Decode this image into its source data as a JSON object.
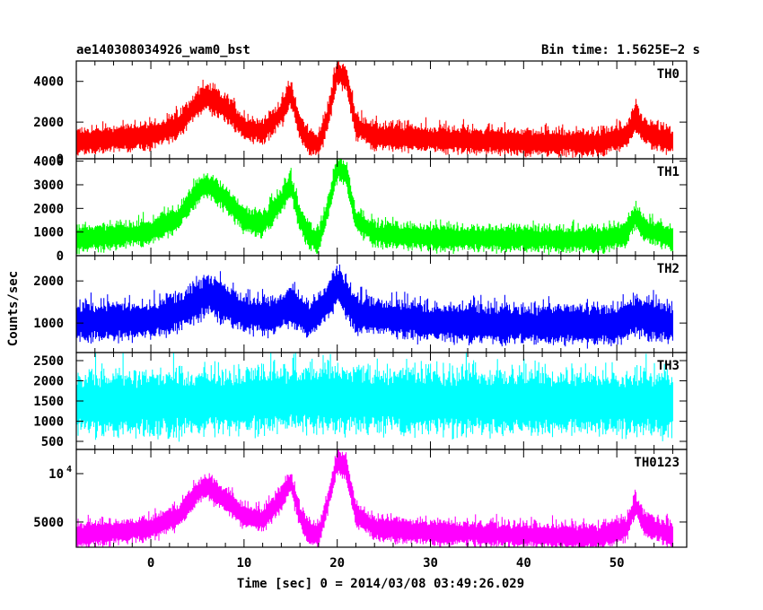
{
  "header": {
    "title": "ae140308034926_wam0_bst",
    "bin_time": "Bin time: 1.5625E−2 s"
  },
  "axis": {
    "ylabel": "Counts/sec",
    "xlabel": "Time [sec] 0 = 2014/03/08 03:49:26.029"
  },
  "chart_data": {
    "type": "line",
    "title": "ae140308034926_wam0_bst",
    "xlabel": "Time [sec] 0 = 2014/03/08 03:49:26.029",
    "ylabel": "Counts/sec",
    "xlim": [
      -8,
      57.5
    ],
    "xticks": [
      0,
      10,
      20,
      30,
      40,
      50
    ],
    "xtick_labels": [
      "0",
      "10",
      "20",
      "30",
      "40",
      "50"
    ],
    "x_start": -8,
    "x_end": 56,
    "panels": [
      {
        "name": "TH0",
        "color": "#ff0000",
        "ylim": [
          200,
          5000
        ],
        "yticks": [
          0,
          2000,
          4000
        ],
        "ytick_labels": [
          "0",
          "2000",
          "4000"
        ],
        "envelope": [
          [
            -8,
            1000
          ],
          [
            -4,
            1150
          ],
          [
            0,
            1300
          ],
          [
            3,
            1800
          ],
          [
            5,
            2900
          ],
          [
            6,
            3200
          ],
          [
            8,
            2700
          ],
          [
            10,
            1700
          ],
          [
            12,
            1500
          ],
          [
            14,
            2400
          ],
          [
            15,
            3400
          ],
          [
            16,
            1700
          ],
          [
            17,
            1000
          ],
          [
            18,
            900
          ],
          [
            19,
            2200
          ],
          [
            20,
            4400
          ],
          [
            21,
            4100
          ],
          [
            22,
            1800
          ],
          [
            24,
            1300
          ],
          [
            30,
            1150
          ],
          [
            40,
            1000
          ],
          [
            48,
            950
          ],
          [
            51,
            1300
          ],
          [
            52,
            2200
          ],
          [
            53,
            1500
          ],
          [
            56,
            1000
          ]
        ],
        "noise": 1000
      },
      {
        "name": "TH1",
        "color": "#00ff00",
        "ylim": [
          0,
          4100
        ],
        "yticks": [
          0,
          1000,
          2000,
          3000,
          4000
        ],
        "ytick_labels": [
          "0",
          "1000",
          "2000",
          "3000",
          "4000"
        ],
        "envelope": [
          [
            -8,
            700
          ],
          [
            -4,
            800
          ],
          [
            0,
            1000
          ],
          [
            3,
            1600
          ],
          [
            5,
            2700
          ],
          [
            6,
            3000
          ],
          [
            8,
            2400
          ],
          [
            10,
            1500
          ],
          [
            12,
            1300
          ],
          [
            14,
            2300
          ],
          [
            15,
            3000
          ],
          [
            16,
            1500
          ],
          [
            17,
            800
          ],
          [
            18,
            600
          ],
          [
            19,
            2000
          ],
          [
            20,
            3700
          ],
          [
            21,
            3400
          ],
          [
            22,
            1500
          ],
          [
            24,
            900
          ],
          [
            30,
            750
          ],
          [
            40,
            700
          ],
          [
            48,
            650
          ],
          [
            51,
            900
          ],
          [
            52,
            1700
          ],
          [
            53,
            1100
          ],
          [
            56,
            700
          ]
        ],
        "noise": 850
      },
      {
        "name": "TH2",
        "color": "#0000ff",
        "ylim": [
          300,
          2600
        ],
        "yticks": [
          1000,
          2000
        ],
        "ytick_labels": [
          "1000",
          "2000"
        ],
        "envelope": [
          [
            -8,
            1000
          ],
          [
            0,
            1050
          ],
          [
            3,
            1250
          ],
          [
            5,
            1500
          ],
          [
            6,
            1650
          ],
          [
            8,
            1450
          ],
          [
            10,
            1200
          ],
          [
            13,
            1150
          ],
          [
            15,
            1400
          ],
          [
            17,
            1050
          ],
          [
            19,
            1500
          ],
          [
            20,
            1900
          ],
          [
            21,
            1600
          ],
          [
            22,
            1200
          ],
          [
            30,
            1000
          ],
          [
            40,
            950
          ],
          [
            50,
            950
          ],
          [
            52,
            1150
          ],
          [
            56,
            950
          ]
        ],
        "noise": 700
      },
      {
        "name": "TH3",
        "color": "#00ffff",
        "ylim": [
          300,
          2700
        ],
        "yticks": [
          500,
          1000,
          1500,
          2000,
          2500
        ],
        "ytick_labels": [
          "500",
          "1000",
          "1500",
          "2000",
          "2500"
        ],
        "envelope": [
          [
            -8,
            1400
          ],
          [
            5,
            1450
          ],
          [
            20,
            1550
          ],
          [
            21,
            1500
          ],
          [
            56,
            1400
          ]
        ],
        "noise": 1200
      },
      {
        "name": "TH0123",
        "color": "#ff00ff",
        "ylim": [
          2400,
          12500
        ],
        "yticks": [
          5000,
          10000
        ],
        "ytick_labels": [
          "5000",
          "10^4"
        ],
        "envelope": [
          [
            -8,
            3600
          ],
          [
            -4,
            3900
          ],
          [
            0,
            4300
          ],
          [
            3,
            5600
          ],
          [
            5,
            8000
          ],
          [
            6,
            8600
          ],
          [
            8,
            7300
          ],
          [
            10,
            5600
          ],
          [
            12,
            5200
          ],
          [
            14,
            7400
          ],
          [
            15,
            9200
          ],
          [
            16,
            5600
          ],
          [
            17,
            3900
          ],
          [
            18,
            3600
          ],
          [
            19,
            7000
          ],
          [
            20,
            11300
          ],
          [
            21,
            10500
          ],
          [
            22,
            5800
          ],
          [
            24,
            4300
          ],
          [
            30,
            3900
          ],
          [
            40,
            3600
          ],
          [
            48,
            3400
          ],
          [
            51,
            4300
          ],
          [
            52,
            6700
          ],
          [
            53,
            4700
          ],
          [
            56,
            3600
          ]
        ],
        "noise": 2000
      }
    ]
  }
}
